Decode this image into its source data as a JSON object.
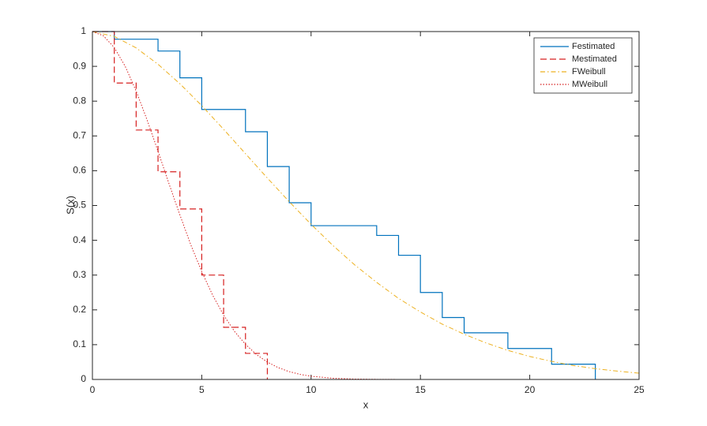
{
  "chart_data": {
    "type": "line",
    "xlabel": "x",
    "ylabel": "S(x)",
    "xlim": [
      0,
      25
    ],
    "xticks": [
      0,
      5,
      10,
      15,
      20,
      25
    ],
    "ylim": [
      0,
      1
    ],
    "yticks": [
      0,
      0.1,
      0.2,
      0.3,
      0.4,
      0.5,
      0.6,
      0.7,
      0.8,
      0.9,
      1
    ],
    "grid": false,
    "legend": "upper right",
    "series": [
      {
        "name": "Festimated",
        "color": "#0072bd",
        "line_style": "solid",
        "step": true,
        "x": [
          0,
          1,
          3,
          4,
          5,
          7,
          8,
          9,
          10,
          13,
          14,
          15,
          16,
          17,
          19,
          21,
          23
        ],
        "values": [
          1,
          0.978,
          0.944,
          0.867,
          0.776,
          0.712,
          0.612,
          0.508,
          0.442,
          0.414,
          0.357,
          0.25,
          0.178,
          0.134,
          0.089,
          0.044,
          0
        ]
      },
      {
        "name": "Mestimated",
        "color": "#d62020",
        "line_style": "dashed",
        "step": true,
        "x": [
          0,
          1,
          2,
          3,
          4,
          5,
          6,
          7,
          8
        ],
        "values": [
          1,
          0.852,
          0.717,
          0.597,
          0.49,
          0.3,
          0.15,
          0.075,
          0
        ]
      },
      {
        "name": "FWeibull",
        "color": "#edb120",
        "line_style": "dashdot",
        "step": false,
        "x": [
          0,
          1,
          2,
          3,
          4,
          5,
          6,
          7,
          8,
          9,
          10,
          11,
          12,
          13,
          14,
          15,
          16,
          17,
          18,
          19,
          20,
          21,
          22,
          23,
          24,
          25
        ],
        "values": [
          1,
          0.986,
          0.953,
          0.906,
          0.85,
          0.787,
          0.719,
          0.649,
          0.579,
          0.511,
          0.446,
          0.385,
          0.329,
          0.279,
          0.233,
          0.194,
          0.159,
          0.13,
          0.105,
          0.0835,
          0.066,
          0.052,
          0.04,
          0.031,
          0.024,
          0.018
        ]
      },
      {
        "name": "MWeibull",
        "color": "#d62020",
        "line_style": "dotted",
        "step": false,
        "x": [
          0,
          0.5,
          1,
          1.5,
          2,
          2.5,
          3,
          3.5,
          4,
          4.5,
          5,
          5.5,
          6,
          6.5,
          7,
          7.5,
          8,
          8.5,
          9,
          9.5,
          10,
          11,
          12,
          13,
          14,
          15,
          20,
          25
        ],
        "values": [
          1,
          0.988,
          0.954,
          0.9,
          0.829,
          0.746,
          0.656,
          0.563,
          0.473,
          0.387,
          0.31,
          0.242,
          0.185,
          0.138,
          0.101,
          0.0717,
          0.0499,
          0.0339,
          0.0225,
          0.0146,
          0.0092,
          0.0035,
          0.0012,
          0.0004,
          0.0001,
          0,
          0,
          0
        ]
      }
    ]
  }
}
